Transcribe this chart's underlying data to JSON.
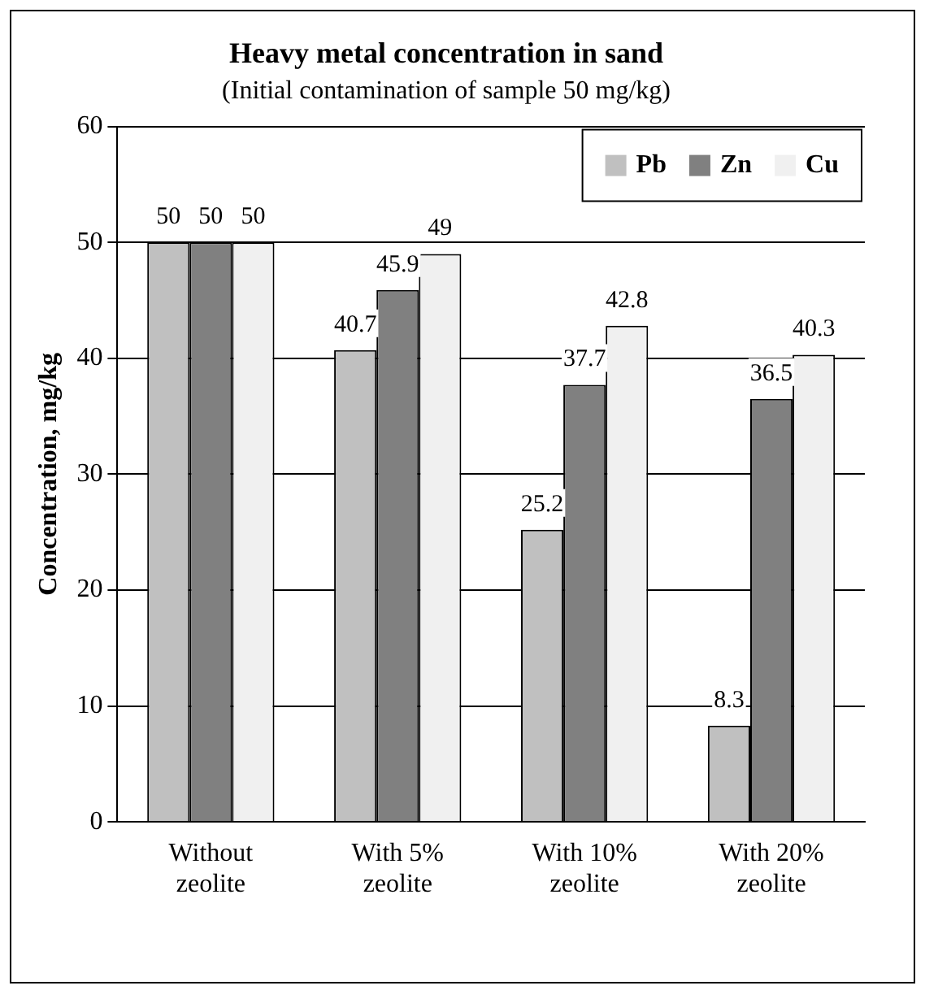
{
  "chart_data": {
    "type": "bar",
    "title": "Heavy metal concentration in sand",
    "subtitle": "(Initial contamination of sample 50 mg/kg)",
    "ylabel": "Concentration, mg/kg",
    "categories": [
      "Without zeolite",
      "With 5% zeolite",
      "With 10% zeolite",
      "With 20% zeolite"
    ],
    "series": [
      {
        "name": "Pb",
        "color": "#c0c0c0",
        "values": [
          50,
          40.7,
          25.2,
          8.3
        ]
      },
      {
        "name": "Zn",
        "color": "#808080",
        "values": [
          50,
          45.9,
          37.7,
          36.5
        ]
      },
      {
        "name": "Cu",
        "color": "#f0f0f0",
        "values": [
          50,
          49,
          42.8,
          40.3
        ]
      }
    ],
    "ylim": [
      0,
      60
    ],
    "yticks": [
      0,
      10,
      20,
      30,
      40,
      50,
      60
    ],
    "grid": "y",
    "legend": "top right",
    "data_labels": true
  }
}
